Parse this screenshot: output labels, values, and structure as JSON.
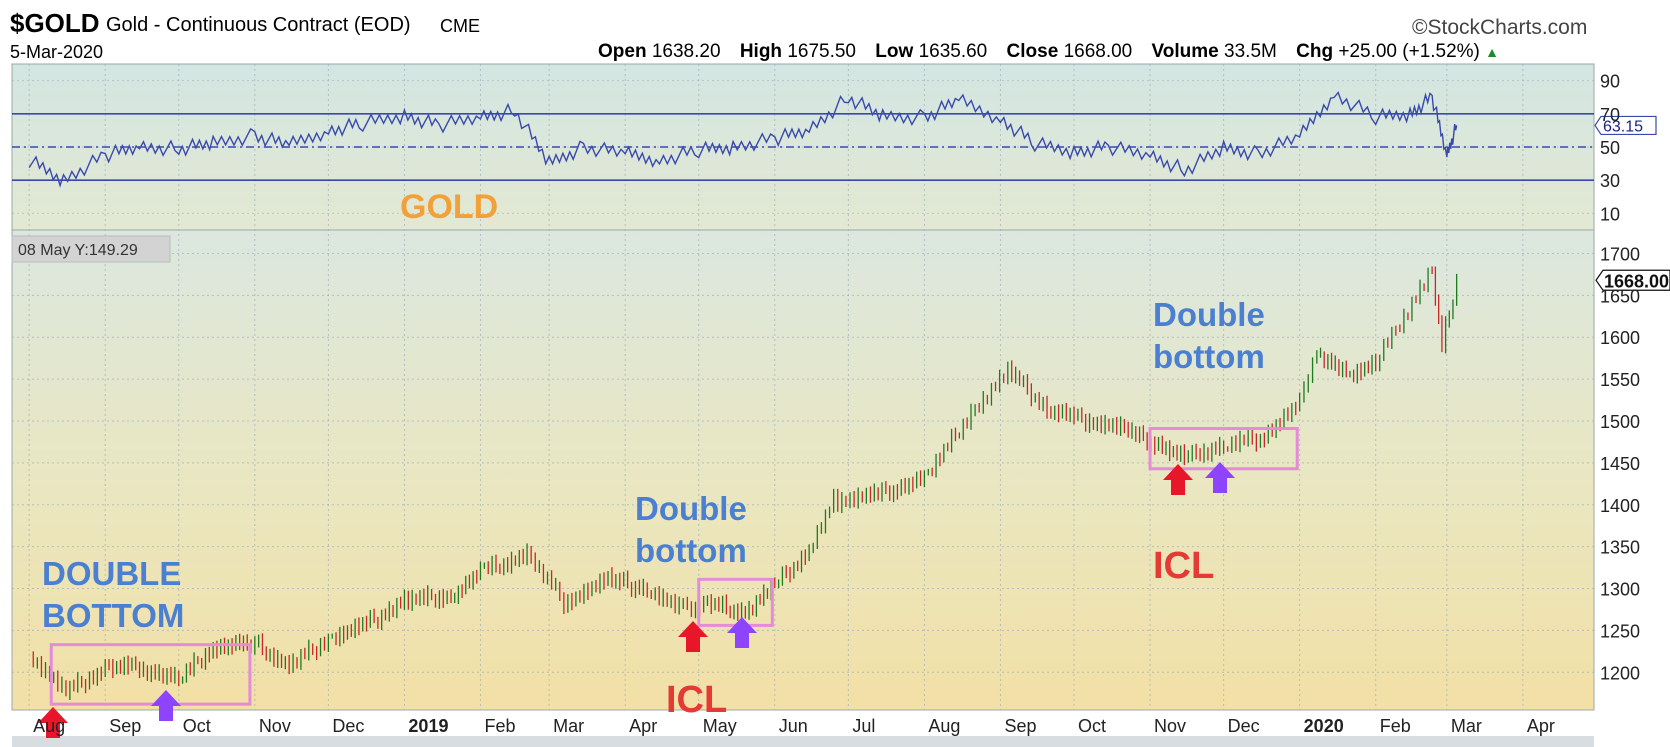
{
  "header": {
    "symbol": "$GOLD",
    "name": "Gold - Continuous Contract (EOD)",
    "exchange": "CME",
    "date": "5-Mar-2020",
    "brand": "©StockCharts.com",
    "quote": {
      "open_label": "Open",
      "open": "1638.20",
      "high_label": "High",
      "high": "1675.50",
      "low_label": "Low",
      "low": "1635.60",
      "close_label": "Close",
      "close": "1668.00",
      "volume_label": "Volume",
      "volume": "33.5M",
      "chg_label": "Chg",
      "chg": "+25.00 (+1.52%)"
    }
  },
  "colors": {
    "up_candle": "#1f7a1f",
    "down_candle": "#c62828",
    "rsi_line": "#3949ab",
    "box": "#e58bd8",
    "annotation_blue": "#4a7fd1",
    "annotation_red": "#e53935",
    "annotation_orange": "#f2a13a",
    "arrow_red": "#e8162a",
    "arrow_purple": "#8e44ff"
  },
  "chart_data": [
    {
      "type": "line",
      "indicator": "RSI",
      "yticks": [
        90,
        70,
        50,
        30,
        10
      ],
      "ylim": [
        0,
        100
      ],
      "levels": [
        70,
        50,
        30
      ],
      "last_value_label": "63.15",
      "x": [
        "2018-08-01",
        "2018-08-15",
        "2018-09-01",
        "2018-09-15",
        "2018-10-01",
        "2018-10-15",
        "2018-11-01",
        "2018-11-15",
        "2018-12-01",
        "2018-12-15",
        "2019-01-01",
        "2019-01-15",
        "2019-02-01",
        "2019-02-15",
        "2019-03-01",
        "2019-03-15",
        "2019-04-01",
        "2019-04-15",
        "2019-05-01",
        "2019-05-15",
        "2019-06-01",
        "2019-06-15",
        "2019-07-01",
        "2019-07-15",
        "2019-08-01",
        "2019-08-15",
        "2019-09-01",
        "2019-09-15",
        "2019-10-01",
        "2019-10-15",
        "2019-11-01",
        "2019-11-15",
        "2019-12-01",
        "2019-12-15",
        "2020-01-01",
        "2020-01-15",
        "2020-02-01",
        "2020-02-15",
        "2020-02-24",
        "2020-03-01",
        "2020-03-05"
      ],
      "values": [
        42,
        30,
        45,
        50,
        49,
        52,
        57,
        51,
        60,
        64,
        69,
        63,
        68,
        72,
        40,
        50,
        46,
        42,
        48,
        50,
        55,
        60,
        80,
        68,
        68,
        78,
        67,
        52,
        47,
        50,
        45,
        36,
        49,
        46,
        56,
        82,
        68,
        70,
        80,
        45,
        63
      ],
      "annotation": "GOLD"
    },
    {
      "type": "candlestick",
      "series_name": "$GOLD",
      "yticks": [
        1700,
        1650,
        1600,
        1550,
        1500,
        1450,
        1400,
        1350,
        1300,
        1250,
        1200
      ],
      "ylim": [
        1155,
        1728
      ],
      "x_tick_labels": [
        "Aug",
        "Sep",
        "Oct",
        "Nov",
        "Dec",
        "2019",
        "Feb",
        "Mar",
        "Apr",
        "May",
        "Jun",
        "Jul",
        "Aug",
        "Sep",
        "Oct",
        "Nov",
        "Dec",
        "2020",
        "Feb",
        "Mar",
        "Apr"
      ],
      "x_bold_labels": [
        "2019",
        "2020"
      ],
      "last_price_label": "1668.00",
      "crosshair_label": "08 May Y:149.29",
      "x": [
        "2018-08-01",
        "2018-08-16",
        "2018-09-01",
        "2018-09-15",
        "2018-10-01",
        "2018-10-15",
        "2018-11-01",
        "2018-11-15",
        "2018-12-01",
        "2018-12-15",
        "2019-01-01",
        "2019-01-20",
        "2019-02-01",
        "2019-02-20",
        "2019-03-07",
        "2019-03-25",
        "2019-04-10",
        "2019-04-23",
        "2019-05-03",
        "2019-05-20",
        "2019-06-01",
        "2019-06-15",
        "2019-06-25",
        "2019-07-10",
        "2019-08-01",
        "2019-08-20",
        "2019-09-04",
        "2019-09-20",
        "2019-10-01",
        "2019-10-20",
        "2019-11-06",
        "2019-11-15",
        "2019-12-01",
        "2019-12-16",
        "2020-01-01",
        "2020-01-08",
        "2020-01-20",
        "2020-02-01",
        "2020-02-24",
        "2020-02-28",
        "2020-03-05"
      ],
      "close": [
        1222,
        1176,
        1205,
        1207,
        1191,
        1230,
        1234,
        1207,
        1240,
        1255,
        1285,
        1292,
        1320,
        1340,
        1285,
        1310,
        1300,
        1275,
        1282,
        1272,
        1305,
        1345,
        1405,
        1410,
        1430,
        1510,
        1560,
        1515,
        1505,
        1490,
        1470,
        1458,
        1470,
        1480,
        1520,
        1580,
        1555,
        1570,
        1680,
        1590,
        1668
      ],
      "annotations": [
        "DOUBLE BOTTOM",
        "Double bottom",
        "ICL",
        "Double bottom",
        "ICL"
      ]
    }
  ]
}
